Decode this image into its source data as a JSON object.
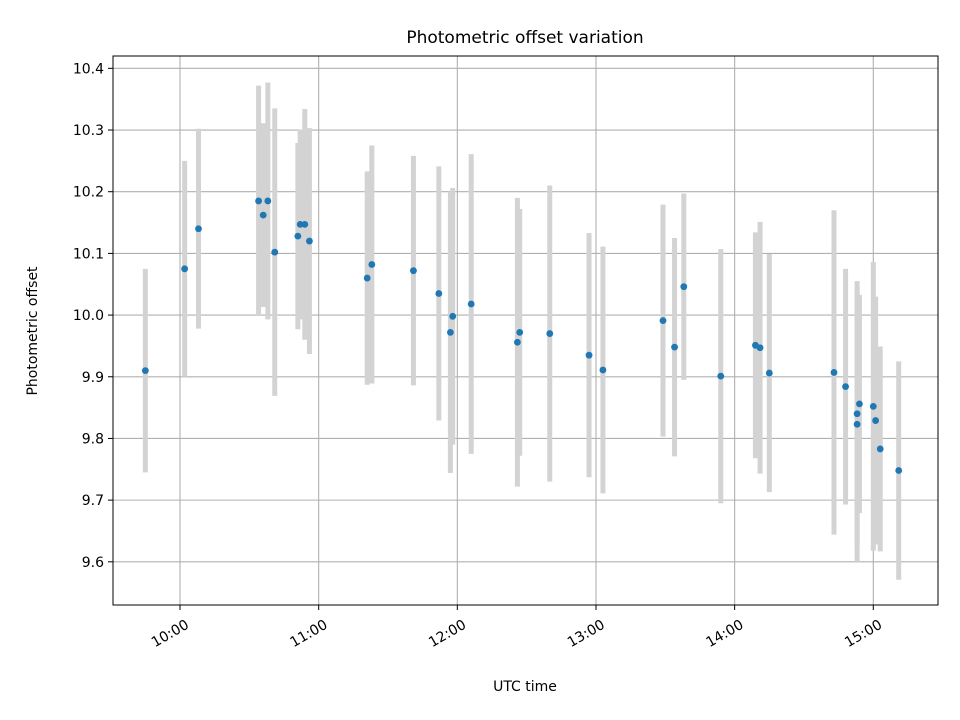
{
  "chart_data": {
    "type": "scatter",
    "title": "Photometric offset variation",
    "xlabel": "UTC time",
    "ylabel": "Photometric offset",
    "x_ticks": [
      "10:00",
      "11:00",
      "12:00",
      "13:00",
      "14:00",
      "15:00"
    ],
    "x_tick_hours": [
      10,
      11,
      12,
      13,
      14,
      15
    ],
    "y_ticks": [
      "9.6",
      "9.7",
      "9.8",
      "9.9",
      "10.0",
      "10.1",
      "10.2",
      "10.3",
      "10.4"
    ],
    "xlim": [
      "09:31",
      "15:28"
    ],
    "ylim": [
      9.53,
      10.42
    ],
    "grid": true,
    "point_color": "#1f77b4",
    "errorbar_color": "#d3d3d3",
    "series": [
      {
        "points": [
          {
            "x": "09:45",
            "y": 9.91,
            "low": 9.745,
            "high": 10.075
          },
          {
            "x": "10:02",
            "y": 10.075,
            "low": 9.9,
            "high": 10.25
          },
          {
            "x": "10:08",
            "y": 10.14,
            "low": 9.978,
            "high": 10.302
          },
          {
            "x": "10:34",
            "y": 10.185,
            "low": 10.0,
            "high": 10.372
          },
          {
            "x": "10:36",
            "y": 10.162,
            "low": 10.013,
            "high": 10.311
          },
          {
            "x": "10:38",
            "y": 10.185,
            "low": 9.993,
            "high": 10.377
          },
          {
            "x": "10:41",
            "y": 10.102,
            "low": 9.869,
            "high": 10.335
          },
          {
            "x": "10:51",
            "y": 10.128,
            "low": 9.977,
            "high": 10.279
          },
          {
            "x": "10:52",
            "y": 10.147,
            "low": 9.993,
            "high": 10.301
          },
          {
            "x": "10:54",
            "y": 10.147,
            "low": 9.96,
            "high": 10.334
          },
          {
            "x": "10:56",
            "y": 10.12,
            "low": 9.937,
            "high": 10.303
          },
          {
            "x": "11:21",
            "y": 10.06,
            "low": 9.887,
            "high": 10.233
          },
          {
            "x": "11:23",
            "y": 10.082,
            "low": 9.889,
            "high": 10.275
          },
          {
            "x": "11:41",
            "y": 10.072,
            "low": 9.886,
            "high": 10.258
          },
          {
            "x": "11:52",
            "y": 10.035,
            "low": 9.829,
            "high": 10.241
          },
          {
            "x": "11:57",
            "y": 9.972,
            "low": 9.744,
            "high": 10.2
          },
          {
            "x": "11:58",
            "y": 9.998,
            "low": 9.79,
            "high": 10.206
          },
          {
            "x": "12:06",
            "y": 10.018,
            "low": 9.775,
            "high": 10.261
          },
          {
            "x": "12:26",
            "y": 9.956,
            "low": 9.722,
            "high": 10.19
          },
          {
            "x": "12:27",
            "y": 9.972,
            "low": 9.772,
            "high": 10.172
          },
          {
            "x": "12:40",
            "y": 9.97,
            "low": 9.73,
            "high": 10.21
          },
          {
            "x": "12:57",
            "y": 9.935,
            "low": 9.737,
            "high": 10.133
          },
          {
            "x": "13:03",
            "y": 9.911,
            "low": 9.711,
            "high": 10.111
          },
          {
            "x": "13:29",
            "y": 9.991,
            "low": 9.803,
            "high": 10.179
          },
          {
            "x": "13:34",
            "y": 9.948,
            "low": 9.771,
            "high": 10.125
          },
          {
            "x": "13:38",
            "y": 10.046,
            "low": 9.895,
            "high": 10.197
          },
          {
            "x": "13:54",
            "y": 9.901,
            "low": 9.695,
            "high": 10.107
          },
          {
            "x": "14:09",
            "y": 9.951,
            "low": 9.768,
            "high": 10.134
          },
          {
            "x": "14:11",
            "y": 9.947,
            "low": 9.743,
            "high": 10.151
          },
          {
            "x": "14:15",
            "y": 9.906,
            "low": 9.713,
            "high": 10.099
          },
          {
            "x": "14:43",
            "y": 9.907,
            "low": 9.644,
            "high": 10.17
          },
          {
            "x": "14:48",
            "y": 9.884,
            "low": 9.693,
            "high": 10.075
          },
          {
            "x": "14:53",
            "y": 9.84,
            "low": 9.625,
            "high": 10.055
          },
          {
            "x": "14:53",
            "y": 9.823,
            "low": 9.6,
            "high": 10.046
          },
          {
            "x": "14:54",
            "y": 9.856,
            "low": 9.679,
            "high": 10.033
          },
          {
            "x": "15:00",
            "y": 9.852,
            "low": 9.618,
            "high": 10.086
          },
          {
            "x": "15:01",
            "y": 9.829,
            "low": 9.628,
            "high": 10.03
          },
          {
            "x": "15:03",
            "y": 9.783,
            "low": 9.617,
            "high": 9.949
          },
          {
            "x": "15:11",
            "y": 9.748,
            "low": 9.571,
            "high": 9.925
          }
        ]
      }
    ]
  }
}
